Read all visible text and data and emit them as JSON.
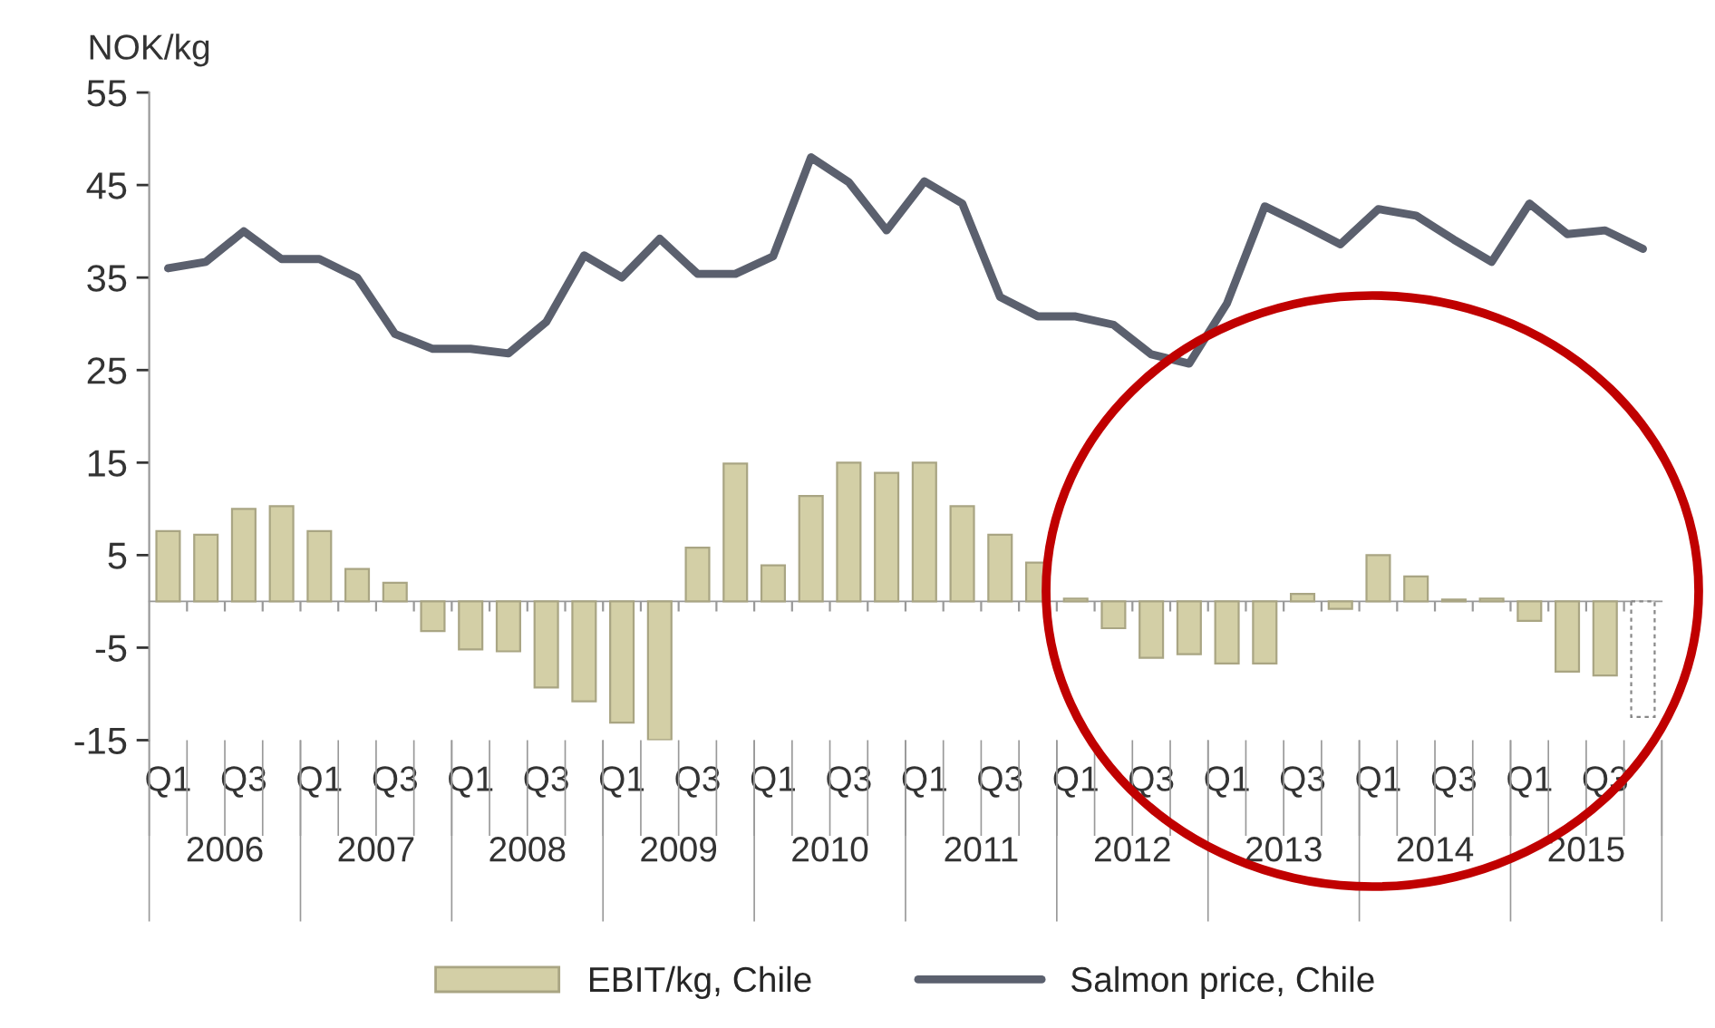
{
  "chart_data": {
    "type": "bar",
    "ylabel": "NOK/kg",
    "categories": [
      "Q1",
      null,
      "Q3",
      null,
      "Q1",
      null,
      "Q3",
      null,
      "Q1",
      null,
      "Q3",
      null,
      "Q1",
      null,
      "Q3",
      null,
      "Q1",
      null,
      "Q3",
      null,
      "Q1",
      null,
      "Q3",
      null,
      "Q1",
      null,
      "Q3",
      null,
      "Q1",
      null,
      "Q3",
      null,
      "Q1",
      null,
      "Q3",
      null,
      "Q1",
      null,
      "Q3",
      null
    ],
    "annotations": [
      "2006",
      "2007",
      "2008",
      "2009",
      "2010",
      "2011",
      "2012",
      "2013",
      "2014",
      "2015"
    ],
    "series": [
      {
        "name": "EBIT/kg, Chile",
        "color": "#d3cfa6",
        "colors": [
          "#d3cfa6",
          "#d3cfa6",
          "#d3cfa6",
          "#d3cfa6",
          "#d3cfa6",
          "#d3cfa6",
          "#d3cfa6",
          "#d3cfa6",
          "#d3cfa6",
          "#d3cfa6",
          "#d3cfa6",
          "#d3cfa6",
          "#d3cfa6",
          "#d3cfa6",
          "#d3cfa6",
          "#d3cfa6",
          "#d3cfa6",
          "#d3cfa6",
          "#d3cfa6",
          "#d3cfa6",
          "#d3cfa6",
          "#d3cfa6",
          "#d3cfa6",
          "#d3cfa6",
          "#d3cfa6",
          "#d3cfa6",
          "#d3cfa6",
          "#d3cfa6",
          "#d3cfa6",
          "#d3cfa6",
          "#d3cfa6",
          "#d3cfa6",
          "#d3cfa6",
          "#d3cfa6",
          "#d3cfa6",
          "#d3cfa6",
          "#d3cfa6",
          "#d3cfa6",
          "#d3cfa6",
          "#ffffff"
        ],
        "values": [
          7.6,
          7.2,
          10,
          10.3,
          7.6,
          3.5,
          2,
          -3.2,
          -5.2,
          -5.4,
          -9.3,
          -10.8,
          -13.1,
          -15,
          5.8,
          14.9,
          3.9,
          11.4,
          15,
          13.9,
          15,
          10.3,
          7.2,
          4.2,
          0.3,
          -2.9,
          -6.1,
          -5.7,
          -6.7,
          -6.7,
          0.8,
          -0.8,
          5,
          2.7,
          0.2,
          0.3,
          -2.1,
          -7.6,
          -8,
          -12.5
        ]
      },
      {
        "name": "Salmon price, Chile",
        "type": "line",
        "color": "#5b606e",
        "values": [
          36,
          36.7,
          40,
          37,
          37,
          35,
          28.9,
          27.3,
          27.3,
          26.8,
          30.2,
          37.4,
          35,
          39.2,
          35.4,
          35.4,
          37.3,
          48,
          45.3,
          40.1,
          45.4,
          43,
          32.9,
          30.8,
          30.8,
          29.9,
          26.7,
          25.7,
          32.2,
          42.7,
          40.7,
          38.6,
          42.4,
          41.7,
          39.1,
          36.7,
          43,
          39.7,
          40.1,
          38.1
        ]
      }
    ],
    "ylim": [
      -15,
      55
    ],
    "yticks": [
      -15,
      -5,
      5,
      15,
      25,
      35,
      45,
      55
    ],
    "grid": false,
    "legend": "bottom"
  }
}
